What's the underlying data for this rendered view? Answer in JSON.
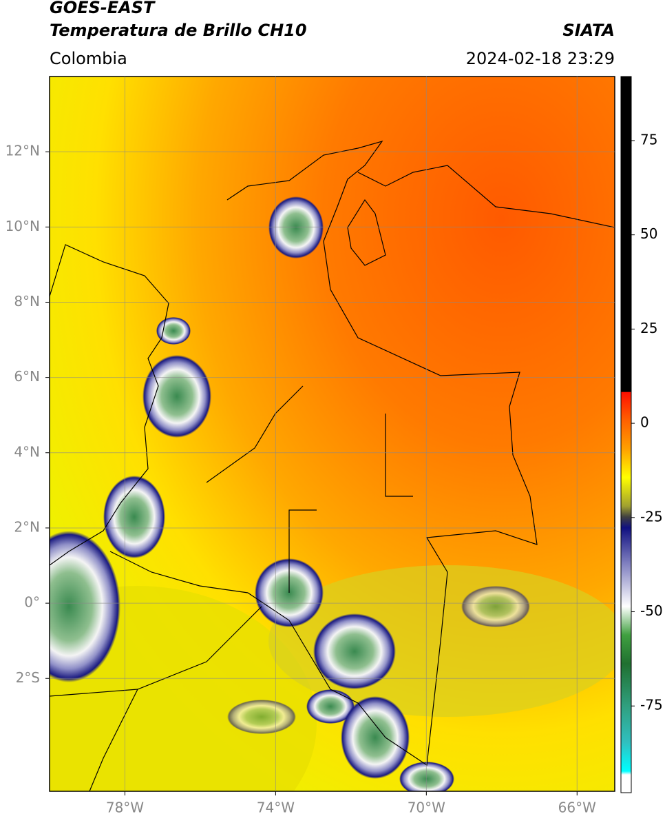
{
  "header": {
    "title": "GOES-EAST",
    "subtitle": "Temperatura de Brillo CH10",
    "region": "Colombia",
    "source": "SIATA",
    "datetime": "2024-02-18 23:29"
  },
  "map": {
    "xlim": [
      -80,
      -65
    ],
    "ylim": [
      -5,
      14
    ],
    "xticks": [
      {
        "value": -78,
        "label": "78°W"
      },
      {
        "value": -74,
        "label": "74°W"
      },
      {
        "value": -70,
        "label": "70°W"
      },
      {
        "value": -66,
        "label": "66°W"
      }
    ],
    "yticks": [
      {
        "value": 12,
        "label": "12°N"
      },
      {
        "value": 10,
        "label": "10°N"
      },
      {
        "value": 8,
        "label": "8°N"
      },
      {
        "value": 6,
        "label": "6°N"
      },
      {
        "value": 4,
        "label": "4°N"
      },
      {
        "value": 2,
        "label": "2°N"
      },
      {
        "value": 0,
        "label": "0°"
      },
      {
        "value": -2,
        "label": "2°S"
      }
    ],
    "grid": true
  },
  "colorbar": {
    "ylim": [
      -98,
      92
    ],
    "yticks": [
      75,
      50,
      25,
      0,
      -25,
      -50,
      -75
    ]
  }
}
